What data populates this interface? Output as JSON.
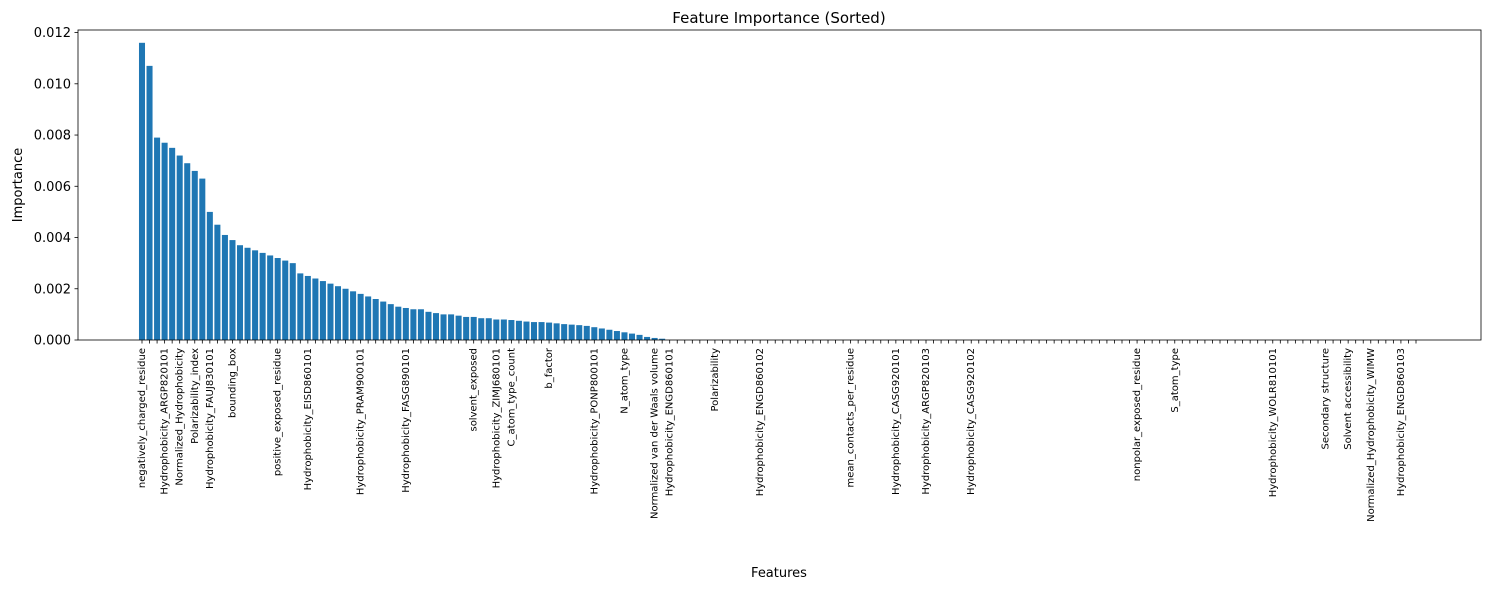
{
  "chart_data": {
    "type": "bar",
    "title": "Feature Importance (Sorted)",
    "xlabel": "Features",
    "ylabel": "Importance",
    "ylim": [
      0,
      0.0121
    ],
    "yticks": [
      "0.000",
      "0.002",
      "0.004",
      "0.006",
      "0.008",
      "0.010",
      "0.012"
    ],
    "ytick_values": [
      0,
      0.002,
      0.004,
      0.006,
      0.008,
      0.01,
      0.012
    ],
    "grid": false,
    "bar_color": "#1f77b4",
    "series": [
      {
        "values": [
          0.0116,
          0.0107,
          0.0079,
          0.0077,
          0.0075,
          0.0072,
          0.0069,
          0.0066,
          0.0063,
          0.005,
          0.0045,
          0.0041,
          0.0039,
          0.0037,
          0.0036,
          0.0035,
          0.0034,
          0.0033,
          0.0032,
          0.0031,
          0.003,
          0.0026,
          0.0025,
          0.0024,
          0.0023,
          0.0022,
          0.0021,
          0.002,
          0.0019,
          0.0018,
          0.0017,
          0.0016,
          0.0015,
          0.0014,
          0.0013,
          0.00125,
          0.0012,
          0.0012,
          0.0011,
          0.00105,
          0.001,
          0.001,
          0.00095,
          0.0009,
          0.0009,
          0.00085,
          0.00085,
          0.0008,
          0.0008,
          0.00078,
          0.00075,
          0.00072,
          0.0007,
          0.0007,
          0.00068,
          0.00065,
          0.00062,
          0.0006,
          0.00058,
          0.00055,
          0.0005,
          0.00045,
          0.0004,
          0.00035,
          0.0003,
          0.00025,
          0.0002,
          0.00012,
          8e-05,
          5e-05
        ]
      }
    ],
    "zero_bar_count": 100,
    "xtick_labels": [
      "negatively_charged_residue",
      "Hydrophobicity_ARGP820101",
      "Normalized_Hydrophobicity",
      "Polarizability_index",
      "Hydrophobicity_FAUJ830101",
      "bounding_box",
      "positive_exposed_residue",
      "Hydrophobicity_EISD860101",
      "Hydrophobicity_PRAM900101",
      "Hydrophobicity_FASG890101",
      "solvent_exposed",
      "Hydrophobicity_ZIMJ680101",
      "C_atom_type_count",
      "b_factor",
      "Hydrophobicity_PONP800101",
      "N_atom_type",
      "Normalized van der Waals volume",
      "Hydrophobicity_ENGD860101",
      "Polarizability",
      "Hydrophobicity_ENGD860102",
      "mean_contacts_per_residue",
      "Hydrophobicity_CASG920101",
      "Hydrophobicity_ARGP820103",
      "Hydrophobicity_CASG920102",
      "nonpolar_exposed_residue",
      "S_atom_type",
      "Hydrophobicity_WOLR810101",
      "Secondary structure",
      "Solvent accessibility",
      "Normalized_Hydrophobicity_WIMW",
      "Hydrophobicity_ENGD860103"
    ]
  }
}
